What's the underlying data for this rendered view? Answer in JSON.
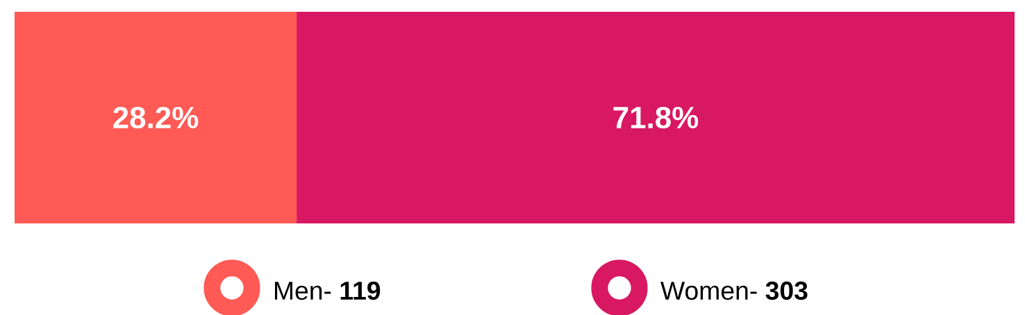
{
  "chart_data": {
    "type": "bar",
    "orientation": "horizontal",
    "stacked": true,
    "categories": [
      null
    ],
    "legend": "bottom",
    "series": [
      {
        "name": "Men- **119**",
        "color": "#ff5a55",
        "values": [
          28.2
        ],
        "value_labels": [
          "28.2%"
        ]
      },
      {
        "name": "Women- **303**",
        "color": "#d81862",
        "values": [
          71.8
        ],
        "value_labels": [
          "71.8%"
        ]
      }
    ]
  }
}
